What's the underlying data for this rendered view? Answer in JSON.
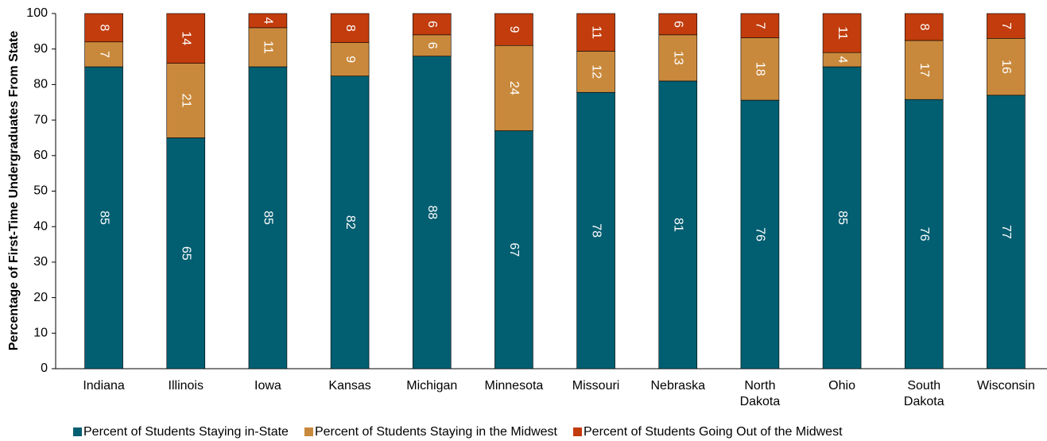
{
  "chart_data": {
    "type": "stacked_bar",
    "y_label": "Percentage of First-Time Undergraduates From State",
    "categories": [
      "Indiana",
      "Illinois",
      "Iowa",
      "Kansas",
      "Michigan",
      "Minnesota",
      "Missouri",
      "Nebraska",
      "North Dakota",
      "Ohio",
      "South Dakota",
      "Wisconsin"
    ],
    "series": [
      {
        "name": "Percent of Students Staying in-State",
        "color": "#025e71",
        "values": [
          85,
          65,
          85,
          82.4,
          88,
          67,
          77.8,
          81,
          75.6,
          85,
          75.8,
          77
        ],
        "value_labels": [
          "85",
          "65",
          "85",
          "82",
          "88",
          "67",
          "78",
          "81",
          "76",
          "85",
          "76",
          "77"
        ]
      },
      {
        "name": "Percent of Students Staying in the Midwest",
        "color": "#c9893c",
        "values": [
          7,
          21,
          11,
          9.4,
          6,
          24,
          11.6,
          13,
          17.6,
          4,
          16.6,
          16
        ],
        "value_labels": [
          "7",
          "21",
          "11",
          "9",
          "6",
          "24",
          "12",
          "13",
          "18",
          "4",
          "17",
          "16"
        ]
      },
      {
        "name": "Percent of Students Going Out of the Midwest",
        "color": "#c23c0d",
        "values": [
          8,
          14,
          4,
          8.2,
          6,
          9,
          10.6,
          6,
          6.8,
          11,
          7.6,
          7
        ],
        "value_labels": [
          "8",
          "14",
          "4",
          "8",
          "6",
          "9",
          "11",
          "6",
          "7",
          "11",
          "8",
          "7"
        ]
      }
    ],
    "ylim": [
      0,
      100
    ],
    "yticks": [
      0,
      10,
      20,
      30,
      40,
      50,
      60,
      70,
      80,
      90,
      100
    ],
    "grid": false
  }
}
